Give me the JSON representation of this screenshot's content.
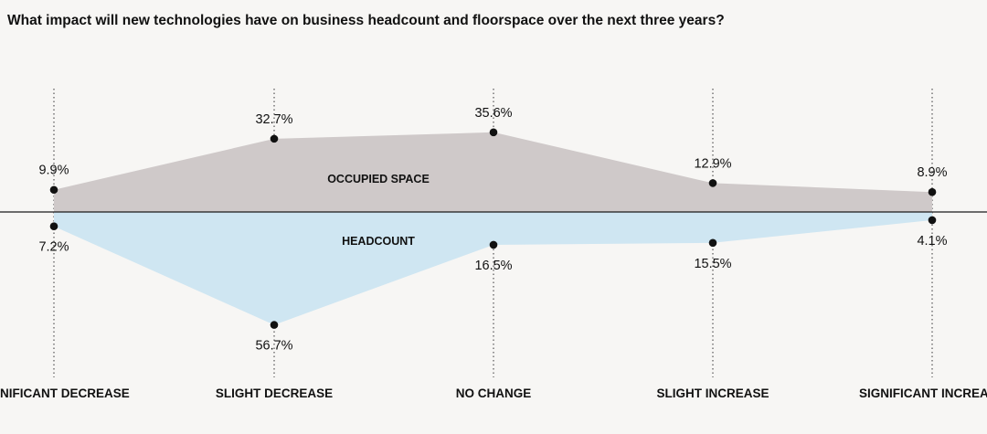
{
  "title": "What impact will new technologies have on business headcount and floorspace over the next three years?",
  "colors": {
    "background": "#f7f6f4",
    "occupied_space_fill": "#cfc9c9",
    "headcount_fill": "#cfe6f2",
    "axis": "#1a1a1a",
    "marker": "#111111",
    "guide": "#333333"
  },
  "chart_data": {
    "type": "area",
    "title": "What impact will new technologies have on business headcount and floorspace over the next three years?",
    "categories": [
      "SIGNIFICANT DECREASE",
      "SLIGHT DECREASE",
      "NO CHANGE",
      "SLIGHT INCREASE",
      "SIGNIFICANT INCREASE"
    ],
    "category_labels_visible": [
      "NIFICANT DECREASE",
      "SLIGHT DECREASE",
      "NO CHANGE",
      "SLIGHT INCREASE",
      "SIGNIFICANT INCREA"
    ],
    "series": [
      {
        "name": "OCCUPIED SPACE",
        "direction": "up",
        "values": [
          9.9,
          32.7,
          35.6,
          12.9,
          8.9
        ],
        "labels": [
          "9.9%",
          "32.7%",
          "35.6%",
          "12.9%",
          "8.9%"
        ]
      },
      {
        "name": "HEADCOUNT",
        "direction": "down",
        "values": [
          7.2,
          56.7,
          16.5,
          15.5,
          4.1
        ],
        "labels": [
          "7.2%",
          "56.7%",
          "16.5%",
          "15.5%",
          "4.1%"
        ]
      }
    ],
    "unit": "%",
    "legend": "inline",
    "grid": false
  }
}
